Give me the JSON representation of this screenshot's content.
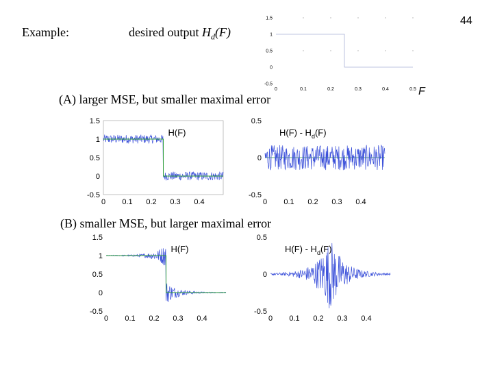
{
  "slide": {
    "page_number": "44",
    "example_label": "Example:",
    "desired_output_prefix": "desired output ",
    "desired_output_symbol": "H",
    "desired_output_subscript": "d",
    "desired_output_arg": "(F)",
    "caption_a": "(A)  larger MSE,  but smaller maximal error",
    "caption_b": "(B)  smaller MSE,  but larger maximal error"
  },
  "chart_data": [
    {
      "id": "desired",
      "type": "line",
      "x_tick_labels": [
        "0",
        "0.1",
        "0.2",
        "0.3",
        "0.4",
        "0.5"
      ],
      "y_tick_labels": [
        "1.5",
        "1",
        "0.5",
        "0",
        "-0.5"
      ],
      "xlabel": "F",
      "ylim": [
        -0.5,
        1.5
      ],
      "xlim": [
        0,
        0.5
      ],
      "series": [
        {
          "x": [
            0,
            0.25,
            0.25,
            0.5
          ],
          "values": [
            1,
            1,
            0,
            0
          ]
        }
      ],
      "colors": {
        "series": "#2a3a9c"
      }
    },
    {
      "id": "a_response",
      "type": "line",
      "title": "H(F)",
      "x_tick_labels": [
        "0",
        "0.1",
        "0.2",
        "0.3",
        "0.4"
      ],
      "y_tick_labels": [
        "1.5",
        "1",
        "0.5",
        "0",
        "-0.5"
      ],
      "ylim": [
        -0.5,
        1.5
      ],
      "xlim": [
        0,
        0.5
      ],
      "series": [
        {
          "role": "actual",
          "x": [
            0,
            0.25,
            0.25,
            0.5
          ],
          "values": [
            1,
            1,
            0,
            0
          ],
          "noise_amplitude": 0.12,
          "ripple": "uniform"
        },
        {
          "role": "desired",
          "x": [
            0,
            0.25,
            0.25,
            0.5
          ],
          "values": [
            1,
            1,
            0,
            0
          ]
        }
      ],
      "colors": {
        "actual": "#3b50d9",
        "desired": "#2e9e3a"
      }
    },
    {
      "id": "a_error",
      "type": "line",
      "title_main": "H(F) - H",
      "title_sub": "d",
      "title_tail": "(F)",
      "x_tick_labels": [
        "0",
        "0.1",
        "0.2",
        "0.3",
        "0.4"
      ],
      "y_tick_labels": [
        "0.5",
        "0",
        "-0.5"
      ],
      "ylim": [
        -0.5,
        0.5
      ],
      "xlim": [
        0,
        0.5
      ],
      "series": [
        {
          "role": "error",
          "noise_amplitude": 0.17,
          "ripple": "uniform"
        }
      ],
      "colors": {
        "error": "#3b50d9",
        "zero_line": "#2e9e3a"
      }
    },
    {
      "id": "b_response",
      "type": "line",
      "title": "H(F)",
      "x_tick_labels": [
        "0",
        "0.1",
        "0.2",
        "0.3",
        "0.4"
      ],
      "y_tick_labels": [
        "1.5",
        "1",
        "0.5",
        "0",
        "-0.5"
      ],
      "ylim": [
        -0.5,
        1.5
      ],
      "xlim": [
        0,
        0.5
      ],
      "series": [
        {
          "role": "actual",
          "x": [
            0,
            0.25,
            0.25,
            0.5
          ],
          "values": [
            1,
            1,
            0,
            0
          ],
          "noise_amplitude": 0.2,
          "ripple": "gibbs"
        },
        {
          "role": "desired",
          "x": [
            0,
            0.25,
            0.25,
            0.5
          ],
          "values": [
            1,
            1,
            0,
            0
          ]
        }
      ],
      "colors": {
        "actual": "#3b50d9",
        "desired": "#2e9e3a"
      }
    },
    {
      "id": "b_error",
      "type": "line",
      "title_main": "H(F) - H",
      "title_sub": "d",
      "title_tail": "(F)",
      "x_tick_labels": [
        "0",
        "0.1",
        "0.2",
        "0.3",
        "0.4"
      ],
      "y_tick_labels": [
        "0.5",
        "0",
        "-0.5"
      ],
      "ylim": [
        -0.5,
        0.5
      ],
      "xlim": [
        0,
        0.5
      ],
      "series": [
        {
          "role": "error",
          "noise_amplitude": 0.5,
          "ripple": "gibbs"
        }
      ],
      "colors": {
        "error": "#3b50d9"
      }
    }
  ]
}
